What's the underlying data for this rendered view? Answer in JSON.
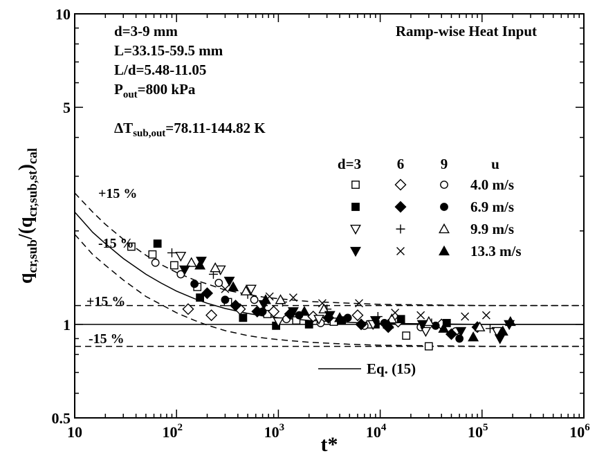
{
  "chart_data": {
    "type": "scatter",
    "title": "",
    "xlabel": {
      "main": "t*",
      "sub": ""
    },
    "ylabel": {
      "t1": "q",
      "s1": "cr,sub",
      "t2": "/(q",
      "s2": "cr,sub,st",
      "t3": ")",
      "s3": "cal"
    },
    "x_scale": "log",
    "y_scale": "log",
    "xlim": [
      10,
      1000000
    ],
    "ylim": [
      0.5,
      10
    ],
    "x_ticks": [
      {
        "value": 10,
        "base": "10",
        "exp": ""
      },
      {
        "value": 100,
        "base": "10",
        "exp": "2"
      },
      {
        "value": 1000,
        "base": "10",
        "exp": "3"
      },
      {
        "value": 10000,
        "base": "10",
        "exp": "4"
      },
      {
        "value": 100000,
        "base": "10",
        "exp": "5"
      },
      {
        "value": 1000000,
        "base": "10",
        "exp": "6"
      }
    ],
    "y_ticks": [
      {
        "value": 0.5,
        "label": "0.5"
      },
      {
        "value": 1,
        "label": "1"
      },
      {
        "value": 5,
        "label": "5"
      },
      {
        "value": 10,
        "label": "10"
      }
    ],
    "annotations": {
      "info_title": "Ramp-wise Heat Input",
      "cond_d": "d=3-9 mm",
      "cond_L": "L=33.15-59.5 mm",
      "cond_Ld": "L/d=5.48-11.05",
      "cond_P": {
        "base": "P",
        "sub": "out",
        "rest": "=800 kPa"
      },
      "cond_T": {
        "base": "ΔT",
        "sub": "sub,out",
        "rest": "=78.11-144.82 K"
      },
      "upper_plus": "+15 %",
      "upper_minus": "-15 %",
      "band_plus": "+15 %",
      "band_minus": "-15 %"
    },
    "legend": {
      "headers": [
        "d=3",
        "6",
        "9",
        "u"
      ],
      "rows": [
        {
          "label": "4.0 m/s",
          "markers": [
            "open-square",
            "open-diamond",
            "open-circle"
          ]
        },
        {
          "label": "6.9 m/s",
          "markers": [
            "filled-square",
            "filled-diamond",
            "filled-circle"
          ]
        },
        {
          "label": "9.9 m/s",
          "markers": [
            "open-triangle-down",
            "plus",
            "open-triangle-up"
          ]
        },
        {
          "label": "13.3 m/s",
          "markers": [
            "filled-triangle-down",
            "cross",
            "filled-triangle-up"
          ]
        }
      ],
      "line_label": "Eq. (15)"
    },
    "curves": [
      {
        "role": "eq15",
        "style": "solid",
        "points": [
          [
            10,
            2.3
          ],
          [
            15,
            1.98
          ],
          [
            20,
            1.82
          ],
          [
            30,
            1.63
          ],
          [
            50,
            1.45
          ],
          [
            70,
            1.36
          ],
          [
            100,
            1.28
          ],
          [
            150,
            1.21
          ],
          [
            200,
            1.17
          ],
          [
            300,
            1.125
          ],
          [
            500,
            1.085
          ],
          [
            700,
            1.065
          ],
          [
            1000,
            1.05
          ],
          [
            2000,
            1.03
          ],
          [
            5000,
            1.015
          ],
          [
            10000,
            1.008
          ],
          [
            100000,
            1.0
          ],
          [
            1000000,
            1.0
          ]
        ]
      },
      {
        "role": "eq15-plus15",
        "style": "dashed",
        "points": [
          [
            10,
            2.65
          ],
          [
            15,
            2.3
          ],
          [
            20,
            2.1
          ],
          [
            30,
            1.88
          ],
          [
            50,
            1.67
          ],
          [
            70,
            1.56
          ],
          [
            100,
            1.47
          ],
          [
            150,
            1.39
          ],
          [
            200,
            1.35
          ],
          [
            300,
            1.29
          ],
          [
            500,
            1.25
          ],
          [
            700,
            1.225
          ],
          [
            1000,
            1.21
          ],
          [
            2000,
            1.185
          ],
          [
            5000,
            1.17
          ],
          [
            10000,
            1.16
          ],
          [
            100000,
            1.15
          ],
          [
            1000000,
            1.15
          ]
        ]
      },
      {
        "role": "eq15-minus15",
        "style": "dashed",
        "points": [
          [
            10,
            1.95
          ],
          [
            15,
            1.68
          ],
          [
            20,
            1.55
          ],
          [
            30,
            1.39
          ],
          [
            50,
            1.23
          ],
          [
            70,
            1.16
          ],
          [
            100,
            1.09
          ],
          [
            150,
            1.03
          ],
          [
            200,
            0.995
          ],
          [
            300,
            0.955
          ],
          [
            500,
            0.92
          ],
          [
            700,
            0.905
          ],
          [
            1000,
            0.893
          ],
          [
            2000,
            0.876
          ],
          [
            5000,
            0.863
          ],
          [
            10000,
            0.857
          ],
          [
            100000,
            0.85
          ],
          [
            1000000,
            0.85
          ]
        ]
      },
      {
        "role": "unity",
        "style": "solid",
        "points": [
          [
            10,
            1.0
          ],
          [
            1000000,
            1.0
          ]
        ]
      },
      {
        "role": "unity-plus15",
        "style": "dashed",
        "points": [
          [
            10,
            1.15
          ],
          [
            1000000,
            1.15
          ]
        ]
      },
      {
        "role": "unity-minus15",
        "style": "dashed",
        "points": [
          [
            10,
            0.85
          ],
          [
            1000000,
            0.85
          ]
        ]
      }
    ],
    "series": [
      {
        "marker": "open-square",
        "points": [
          [
            36,
            1.78
          ],
          [
            58,
            1.68
          ],
          [
            95,
            1.55
          ],
          [
            160,
            1.32
          ],
          [
            320,
            1.18
          ],
          [
            780,
            1.08
          ],
          [
            1500,
            1.03
          ],
          [
            3500,
            1.02
          ],
          [
            8000,
            1.0
          ],
          [
            18000,
            0.92
          ],
          [
            30000,
            0.85
          ]
        ]
      },
      {
        "marker": "open-diamond",
        "points": [
          [
            130,
            1.12
          ],
          [
            220,
            1.07
          ],
          [
            420,
            1.12
          ],
          [
            900,
            1.1
          ],
          [
            2200,
            1.06
          ],
          [
            6000,
            1.07
          ],
          [
            15000,
            1.02
          ],
          [
            40000,
            1.0
          ]
        ]
      },
      {
        "marker": "open-circle",
        "points": [
          [
            62,
            1.58
          ],
          [
            110,
            1.45
          ],
          [
            260,
            1.36
          ],
          [
            580,
            1.2
          ],
          [
            1200,
            1.04
          ],
          [
            2600,
            1.01
          ],
          [
            7000,
            0.99
          ],
          [
            25000,
            0.98
          ],
          [
            55000,
            0.95
          ]
        ]
      },
      {
        "marker": "filled-square",
        "points": [
          [
            65,
            1.82
          ],
          [
            170,
            1.22
          ],
          [
            450,
            1.05
          ],
          [
            950,
            0.99
          ],
          [
            2000,
            1.0
          ],
          [
            4200,
            1.03
          ],
          [
            9000,
            1.0
          ],
          [
            16000,
            1.04
          ],
          [
            45000,
            1.01
          ]
        ]
      },
      {
        "marker": "filled-diamond",
        "points": [
          [
            200,
            1.26
          ],
          [
            380,
            1.15
          ],
          [
            620,
            1.1
          ],
          [
            1300,
            1.08
          ],
          [
            3100,
            1.05
          ],
          [
            6500,
            1.0
          ],
          [
            12000,
            0.98
          ],
          [
            50000,
            0.93
          ],
          [
            90000,
            0.98
          ]
        ]
      },
      {
        "marker": "filled-circle",
        "points": [
          [
            150,
            1.35
          ],
          [
            300,
            1.2
          ],
          [
            700,
            1.1
          ],
          [
            1600,
            1.07
          ],
          [
            4800,
            1.05
          ],
          [
            11000,
            1.01
          ],
          [
            35000,
            0.99
          ],
          [
            60000,
            0.9
          ]
        ]
      },
      {
        "marker": "open-triangle-down",
        "points": [
          [
            110,
            1.66
          ],
          [
            270,
            1.5
          ],
          [
            540,
            1.3
          ],
          [
            1000,
            1.02
          ],
          [
            2500,
            1.04
          ],
          [
            8500,
            1.0
          ],
          [
            28000,
            0.95
          ],
          [
            140000,
            0.95
          ]
        ]
      },
      {
        "marker": "plus",
        "points": [
          [
            90,
            1.7
          ],
          [
            230,
            1.45
          ],
          [
            500,
            1.25
          ],
          [
            1100,
            1.18
          ],
          [
            3000,
            1.12
          ],
          [
            9500,
            1.06
          ],
          [
            32000,
            1.01
          ],
          [
            120000,
            0.97
          ]
        ]
      },
      {
        "marker": "open-triangle-up",
        "points": [
          [
            140,
            1.58
          ],
          [
            240,
            1.52
          ],
          [
            480,
            1.28
          ],
          [
            1050,
            1.2
          ],
          [
            2800,
            1.12
          ],
          [
            13000,
            1.04
          ],
          [
            30000,
            1.02
          ],
          [
            95000,
            0.98
          ]
        ]
      },
      {
        "marker": "filled-triangle-down",
        "points": [
          [
            120,
            1.5
          ],
          [
            175,
            1.6
          ],
          [
            330,
            1.38
          ],
          [
            720,
            1.16
          ],
          [
            1400,
            1.1
          ],
          [
            3200,
            1.07
          ],
          [
            9000,
            1.03
          ],
          [
            26000,
            1.0
          ],
          [
            62000,
            0.95
          ],
          [
            150000,
            0.9
          ],
          [
            185000,
            1.0
          ]
        ]
      },
      {
        "marker": "cross",
        "points": [
          [
            300,
            1.3
          ],
          [
            820,
            1.23
          ],
          [
            1400,
            1.22
          ],
          [
            2700,
            1.17
          ],
          [
            6200,
            1.17
          ],
          [
            14000,
            1.09
          ],
          [
            25000,
            1.07
          ],
          [
            68000,
            1.06
          ],
          [
            110000,
            1.07
          ]
        ]
      },
      {
        "marker": "filled-triangle-up",
        "points": [
          [
            170,
            1.55
          ],
          [
            360,
            1.32
          ],
          [
            750,
            1.2
          ],
          [
            1800,
            1.1
          ],
          [
            4000,
            1.05
          ],
          [
            12000,
            1.0
          ],
          [
            42000,
            0.97
          ],
          [
            82000,
            0.91
          ],
          [
            160000,
            0.95
          ],
          [
            190000,
            1.02
          ]
        ]
      }
    ]
  }
}
